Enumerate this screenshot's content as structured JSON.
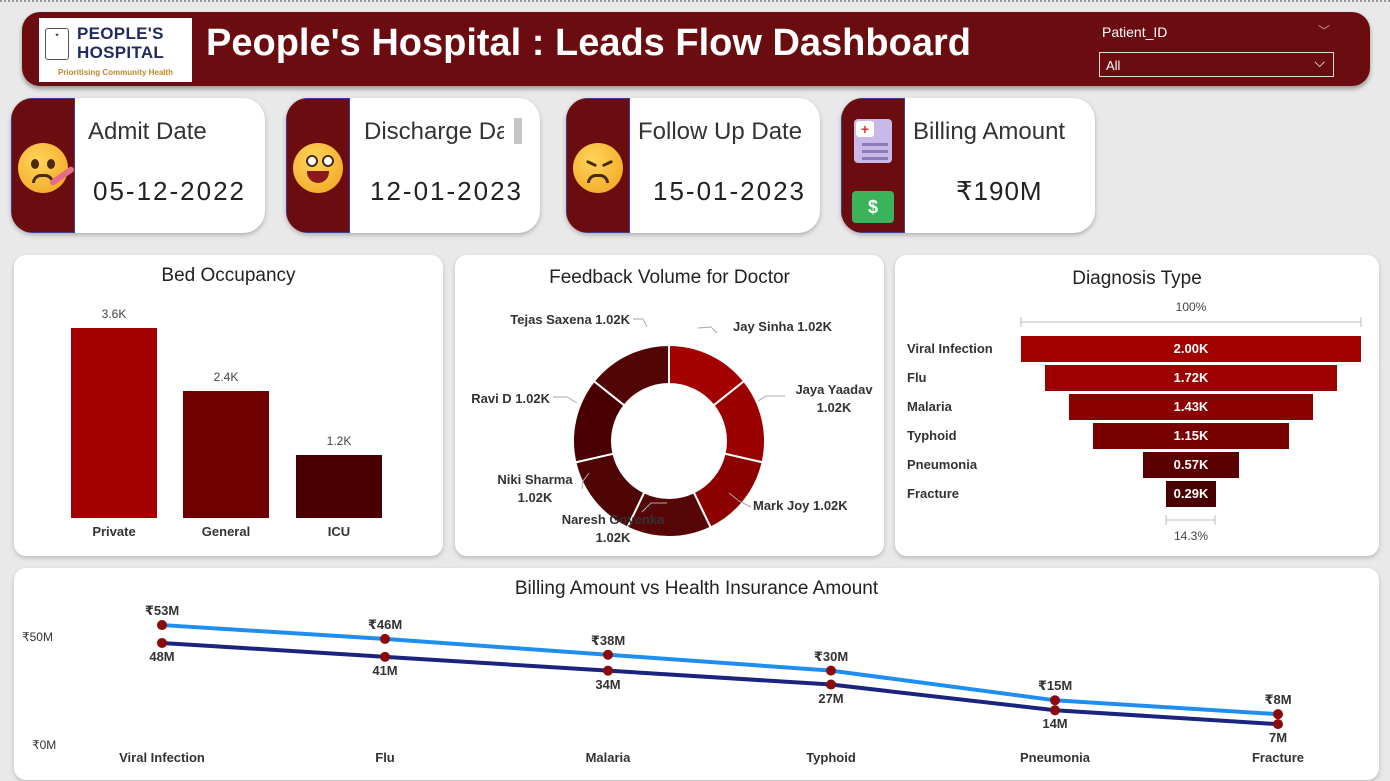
{
  "header": {
    "logo_line1": "PEOPLE'S",
    "logo_line2": "HOSPITAL",
    "logo_tagline": "Prioritising Community Health",
    "title": "People's Hospital : Leads Flow Dashboard",
    "slicer_label": "Patient_ID",
    "slicer_value": "All"
  },
  "kpis": [
    {
      "label": "Admit Date",
      "value": "05-12-2022",
      "icon": "sick-face-icon"
    },
    {
      "label": "Discharge Date",
      "value": "12-01-2023",
      "icon": "grinning-face-icon"
    },
    {
      "label": "Follow Up Date",
      "value": "15-01-2023",
      "icon": "tired-face-icon"
    },
    {
      "label": "Billing Amount",
      "value": "₹190M",
      "icon": "bill-money-icon"
    }
  ],
  "colors": {
    "brand": "#6b0d10",
    "red": "#a30000",
    "mid": "#700000",
    "dark": "#4a0000",
    "billing_line": "#1f8ef1",
    "insurance_line": "#1a237e"
  },
  "bed_occupancy": {
    "title": "Bed Occupancy",
    "chart_data": {
      "type": "bar",
      "categories": [
        "Private",
        "General",
        "ICU"
      ],
      "values": [
        3600,
        2400,
        1200
      ],
      "labels": [
        "3.6K",
        "2.4K",
        "1.2K"
      ]
    }
  },
  "feedback": {
    "title": "Feedback Volume for Doctor",
    "chart_data": {
      "type": "pie",
      "categories": [
        "Jay Sinha",
        "Jaya Yaadav",
        "Mark Joy",
        "Naresh Goyenka",
        "Niki Sharma",
        "Ravi D",
        "Tejas Saxena"
      ],
      "values": [
        1020,
        1020,
        1020,
        1020,
        1020,
        1020,
        1020
      ],
      "labels": [
        "Jay Sinha 1.02K",
        "Jaya Yaadav 1.02K",
        "Mark Joy 1.02K",
        "Naresh Goyenka 1.02K",
        "Niki Sharma 1.02K",
        "Ravi D 1.02K",
        "Tejas Saxena 1.02K"
      ]
    }
  },
  "diagnosis": {
    "title": "Diagnosis Type",
    "top_pct": "100%",
    "bottom_pct": "14.3%",
    "chart_data": {
      "type": "bar",
      "categories": [
        "Viral Infection",
        "Flu",
        "Malaria",
        "Typhoid",
        "Pneumonia",
        "Fracture"
      ],
      "values": [
        2000,
        1720,
        1430,
        1150,
        570,
        290
      ],
      "labels": [
        "2.00K",
        "1.72K",
        "1.43K",
        "1.15K",
        "0.57K",
        "0.29K"
      ]
    }
  },
  "billing": {
    "title": "Billing Amount vs Health Insurance Amount",
    "y_ticks": [
      "₹50M",
      "₹0M"
    ],
    "chart_data": {
      "type": "line",
      "x": [
        "Viral Infection",
        "Flu",
        "Malaria",
        "Typhoid",
        "Pneumonia",
        "Fracture"
      ],
      "ylim": [
        0,
        60
      ],
      "series": [
        {
          "values": [
            53,
            46,
            38,
            30,
            15,
            8
          ],
          "labels": [
            "₹53M",
            "₹46M",
            "₹38M",
            "₹30M",
            "₹15M",
            "₹8M"
          ]
        },
        {
          "values": [
            48,
            41,
            34,
            27,
            14,
            7
          ],
          "labels": [
            "48M",
            "41M",
            "34M",
            "27M",
            "14M",
            "7M"
          ]
        }
      ]
    }
  }
}
